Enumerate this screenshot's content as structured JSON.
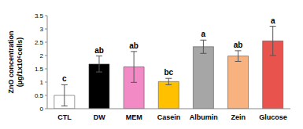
{
  "chart_data": {
    "type": "bar",
    "y_label": "ZnO concentration (µg/1x10⁶cells)",
    "categories": [
      "CTL",
      "DW",
      "MEM",
      "Casein",
      "Albumin",
      "Zein",
      "Glucose"
    ],
    "values": [
      0.5,
      1.68,
      1.57,
      1.02,
      2.33,
      1.98,
      2.55
    ],
    "errors": [
      0.4,
      0.3,
      0.58,
      0.12,
      0.25,
      0.2,
      0.55
    ],
    "significance": [
      "c",
      "ab",
      "ab",
      "bc",
      "a",
      "ab",
      "a"
    ],
    "colors": [
      "#ffffff",
      "#000000",
      "#f28ac6",
      "#ffc000",
      "#a6a6a6",
      "#f7b27f",
      "#e8534e"
    ],
    "ylim": [
      0,
      3.5
    ],
    "yticks": [
      0,
      0.5,
      1,
      1.5,
      2,
      2.5,
      3,
      3.5
    ],
    "grid": false
  }
}
